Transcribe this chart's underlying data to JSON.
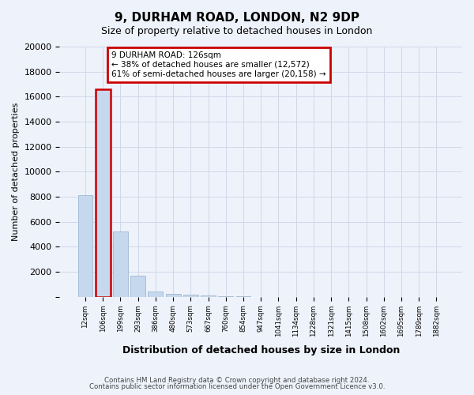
{
  "title": "9, DURHAM ROAD, LONDON, N2 9DP",
  "subtitle": "Size of property relative to detached houses in London",
  "xlabel": "Distribution of detached houses by size in London",
  "ylabel": "Number of detached properties",
  "bins": [
    "12sqm",
    "106sqm",
    "199sqm",
    "293sqm",
    "386sqm",
    "480sqm",
    "573sqm",
    "667sqm",
    "760sqm",
    "854sqm",
    "947sqm",
    "1041sqm",
    "1134sqm",
    "1228sqm",
    "1321sqm",
    "1415sqm",
    "1508sqm",
    "1602sqm",
    "1695sqm",
    "1789sqm",
    "1882sqm"
  ],
  "values": [
    8100,
    16600,
    5250,
    1700,
    430,
    230,
    160,
    100,
    60,
    30,
    15,
    8,
    5,
    3,
    2,
    1,
    1,
    1,
    0,
    0,
    0
  ],
  "bar_color": "#c5d8ed",
  "bar_edge_color": "#a0b8d0",
  "highlight_index": 1,
  "annotation_text_line1": "9 DURHAM ROAD: 126sqm",
  "annotation_text_line2": "← 38% of detached houses are smaller (12,572)",
  "annotation_text_line3": "61% of semi-detached houses are larger (20,158) →",
  "annotation_box_color": "#cc0000",
  "ylim": [
    0,
    20000
  ],
  "yticks": [
    0,
    2000,
    4000,
    6000,
    8000,
    10000,
    12000,
    14000,
    16000,
    18000,
    20000
  ],
  "footer_line1": "Contains HM Land Registry data © Crown copyright and database right 2024.",
  "footer_line2": "Contains public sector information licensed under the Open Government Licence v3.0.",
  "bg_color": "#eef2fb",
  "grid_color": "#d0d8e8"
}
